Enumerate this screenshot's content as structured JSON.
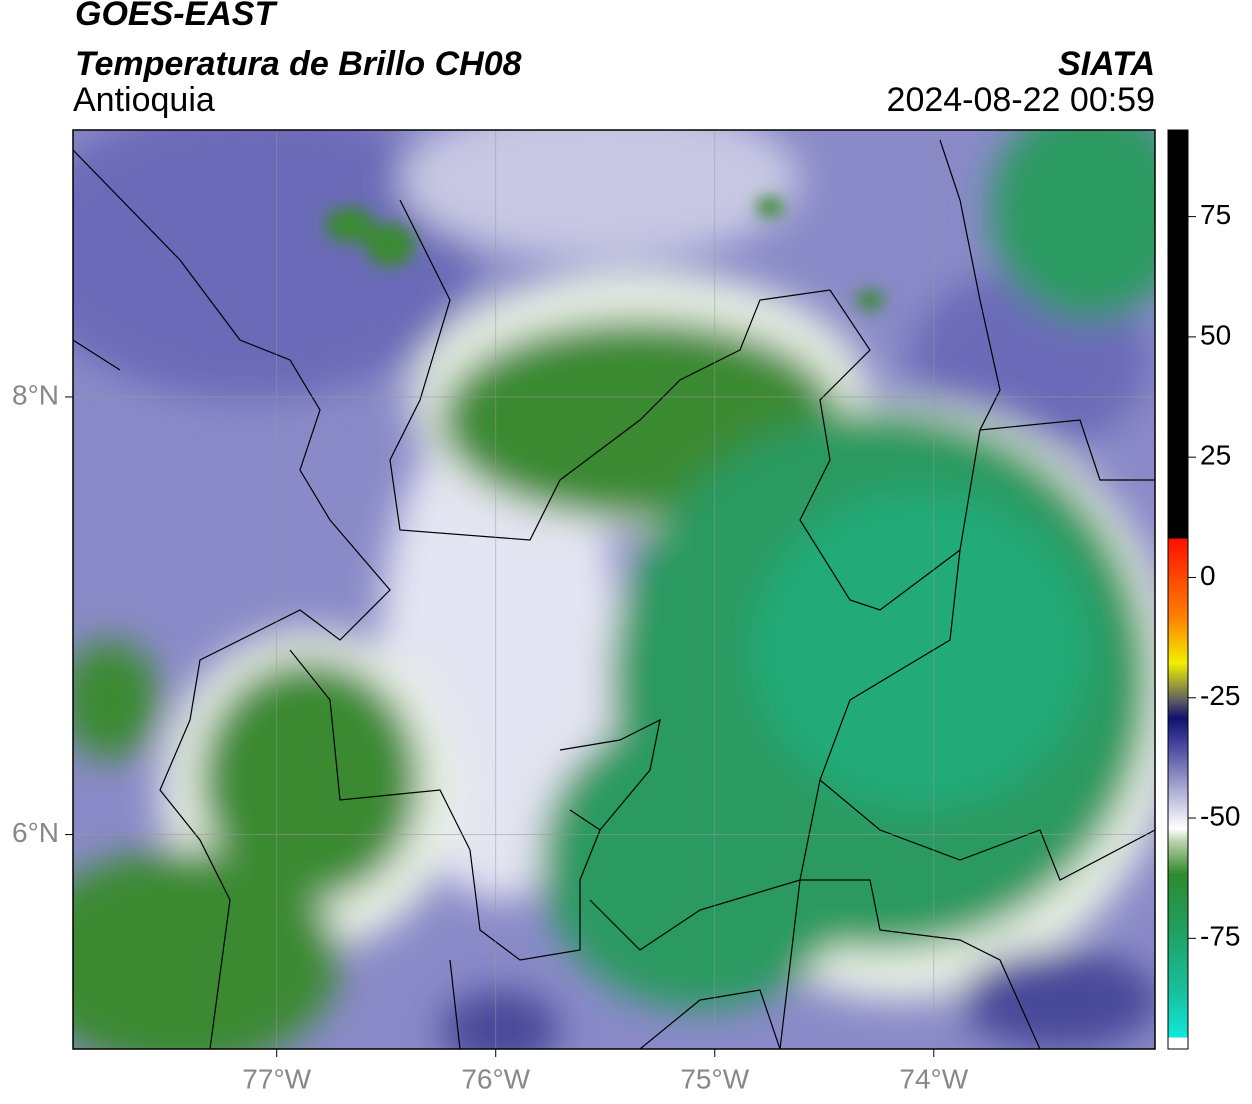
{
  "header": {
    "title": "GOES-EAST",
    "subtitle": "Temperatura de Brillo CH08",
    "region": "Antioquia",
    "source": "SIATA",
    "datetime": "2024-08-22 00:59"
  },
  "map": {
    "lonlim": [
      -77.93,
      -72.99
    ],
    "latlim": [
      5.02,
      9.22
    ],
    "lonticks": [
      {
        "value": -77,
        "label": "77°W"
      },
      {
        "value": -76,
        "label": "76°W"
      },
      {
        "value": -75,
        "label": "75°W"
      },
      {
        "value": -74,
        "label": "74°W"
      }
    ],
    "latticks": [
      {
        "value": 8,
        "label": "8°N"
      },
      {
        "value": 6,
        "label": "6°N"
      }
    ]
  },
  "colorbar": {
    "lim": [
      -98,
      93
    ],
    "ticks": [
      75,
      50,
      25,
      0,
      -25,
      -50,
      -75
    ]
  }
}
